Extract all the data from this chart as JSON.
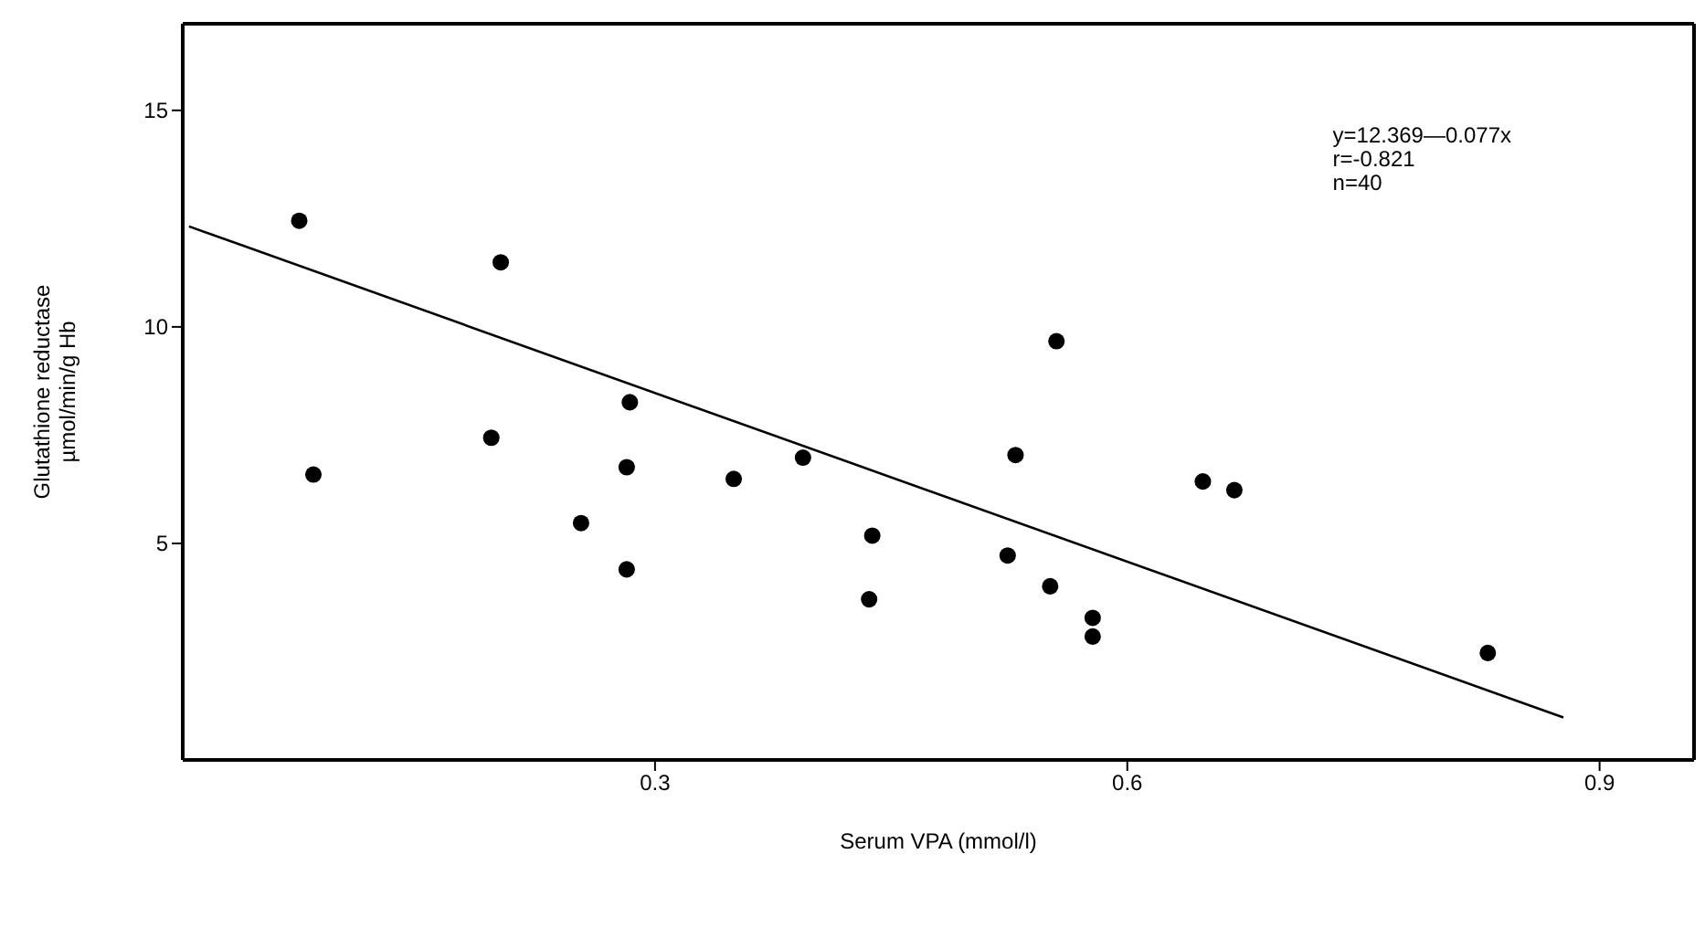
{
  "chart_data": {
    "type": "scatter",
    "xlabel": "Serum VPA (mmol/l)",
    "ylabel": "Glutathione reductase\nµmol/min/g Hb",
    "xlim": [
      0,
      0.96
    ],
    "ylim": [
      0,
      17
    ],
    "xticks": [
      0.3,
      0.6,
      0.9
    ],
    "yticks": [
      5,
      10,
      15
    ],
    "grid": false,
    "legend": false,
    "marker": "circle",
    "annotations": [
      "y=12.369—0.077x\nr=-0.821\nn=40"
    ],
    "series": [
      {
        "color": "#000000",
        "x": [
          0.074,
          0.083,
          0.202,
          0.196,
          0.284,
          0.282,
          0.253,
          0.282,
          0.35,
          0.394,
          0.438,
          0.436,
          0.555,
          0.529,
          0.524,
          0.551,
          0.578,
          0.578,
          0.648,
          0.668,
          0.829
        ],
        "values": [
          12.45,
          6.59,
          11.49,
          7.44,
          8.26,
          6.76,
          5.47,
          4.4,
          6.49,
          6.98,
          5.18,
          3.71,
          9.67,
          7.04,
          4.72,
          4.01,
          3.28,
          2.85,
          6.43,
          6.23,
          2.47
        ]
      },
      {
        "type": "line",
        "marker": "none",
        "color": "#000000",
        "x": [
          0.004,
          0.877
        ],
        "values": [
          12.32,
          0.98
        ]
      }
    ]
  }
}
